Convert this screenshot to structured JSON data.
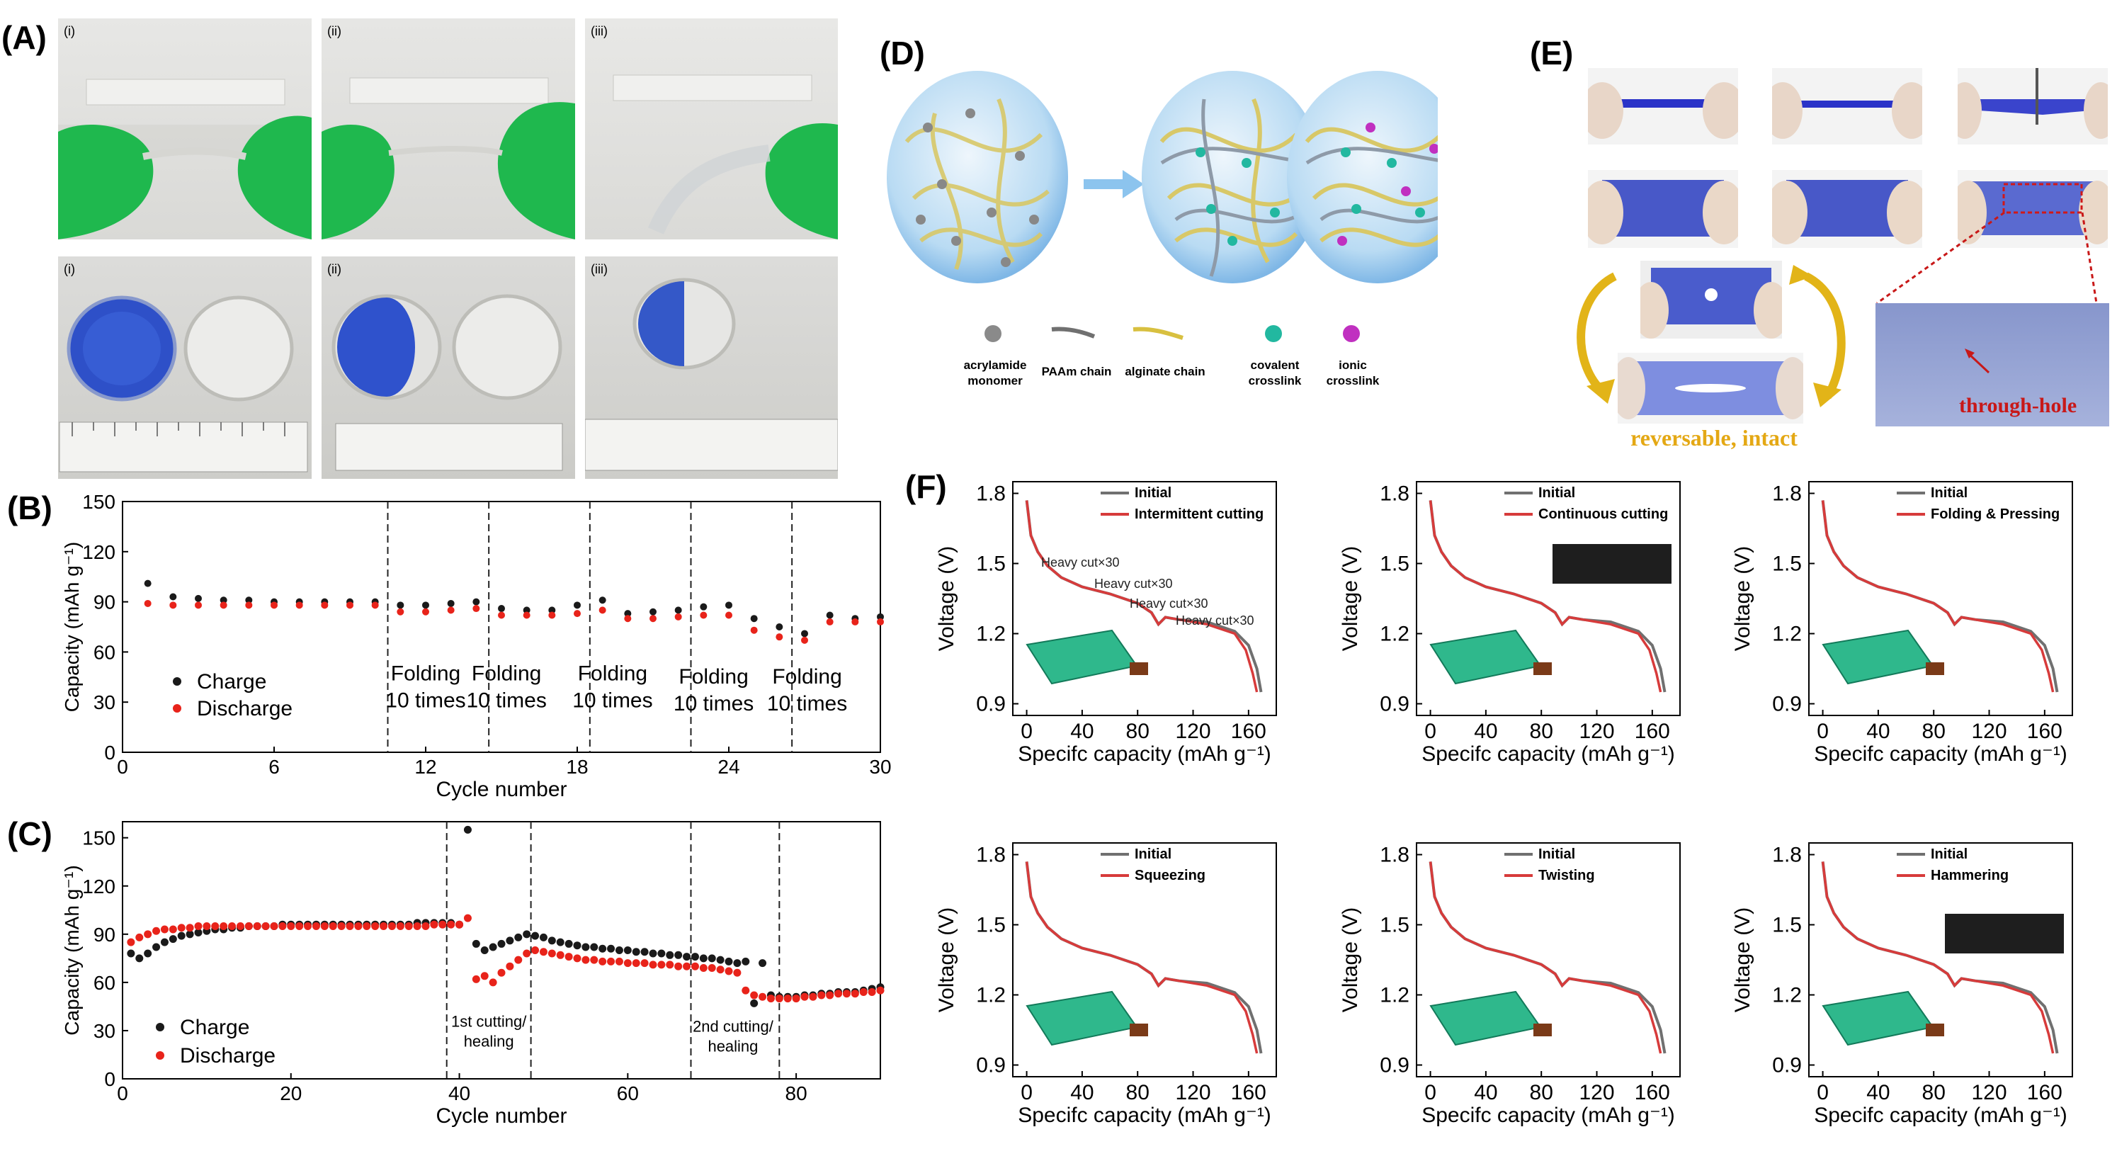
{
  "panels": {
    "A": {
      "label": "(A)",
      "roman": [
        "(i)",
        "(ii)",
        "(iii)"
      ]
    },
    "B": {
      "label": "(B)"
    },
    "C": {
      "label": "(C)"
    },
    "D": {
      "label": "(D)"
    },
    "E": {
      "label": "(E)"
    },
    "F": {
      "label": "(F)"
    }
  },
  "panelD": {
    "legend": [
      {
        "name": "acrylamide monomer",
        "line1": "acrylamide",
        "line2": "monomer"
      },
      {
        "name": "PAAm chain",
        "line1": "PAAm chain",
        "line2": ""
      },
      {
        "name": "alginate chain",
        "line1": "alginate chain",
        "line2": ""
      },
      {
        "name": "covalent crosslink",
        "line1": "covalent",
        "line2": "crosslink"
      },
      {
        "name": "ionic crosslink",
        "line1": "ionic",
        "line2": "crosslink"
      }
    ]
  },
  "panelE": {
    "caption": "reversable, intact",
    "hole_label": "through-hole"
  },
  "chart_data": [
    {
      "id": "B",
      "type": "scatter",
      "xlabel": "Cycle number",
      "ylabel": "Capacity (mAh g⁻¹)",
      "xlim": [
        0,
        30
      ],
      "ylim": [
        0,
        150
      ],
      "xticks": [
        0,
        6,
        12,
        18,
        24,
        30
      ],
      "yticks": [
        0,
        30,
        60,
        90,
        120,
        150
      ],
      "series": [
        {
          "name": "Charge",
          "color": "#1a1a1a",
          "x": [
            1,
            2,
            3,
            4,
            5,
            6,
            7,
            8,
            9,
            10,
            11,
            12,
            13,
            14,
            15,
            16,
            17,
            18,
            19,
            20,
            21,
            22,
            23,
            24,
            25,
            26,
            27,
            28,
            29,
            30
          ],
          "y": [
            101,
            93,
            92,
            91,
            91,
            90,
            90,
            90,
            90,
            90,
            88,
            88,
            89,
            90,
            86,
            85,
            85,
            88,
            91,
            83,
            84,
            85,
            87,
            88,
            80,
            75,
            71,
            82,
            80,
            81
          ]
        },
        {
          "name": "Discharge",
          "color": "#e8231a",
          "x": [
            1,
            2,
            3,
            4,
            5,
            6,
            7,
            8,
            9,
            10,
            11,
            12,
            13,
            14,
            15,
            16,
            17,
            18,
            19,
            20,
            21,
            22,
            23,
            24,
            25,
            26,
            27,
            28,
            29,
            30
          ],
          "y": [
            89,
            88,
            88,
            88,
            88,
            88,
            88,
            88,
            88,
            88,
            84,
            84,
            85,
            86,
            82,
            82,
            82,
            83,
            85,
            80,
            80,
            81,
            82,
            82,
            73,
            69,
            67,
            78,
            78,
            78
          ]
        }
      ],
      "vlines": [
        10.5,
        14.5,
        18.5,
        22.5,
        26.5
      ],
      "annotations": [
        {
          "line1": "Folding",
          "line2": "10 times",
          "x": 12.0,
          "y": 27
        },
        {
          "line1": "Folding",
          "line2": "10 times",
          "x": 15.2,
          "y": 27
        },
        {
          "line1": "Folding",
          "line2": "10 times",
          "x": 19.4,
          "y": 27
        },
        {
          "line1": "Folding",
          "line2": "10 times",
          "x": 23.4,
          "y": 25
        },
        {
          "line1": "Folding",
          "line2": "10 times",
          "x": 27.1,
          "y": 25
        }
      ]
    },
    {
      "id": "C",
      "type": "scatter",
      "xlabel": "Cycle number",
      "ylabel": "Capacity (mAh g⁻¹)",
      "xlim": [
        0,
        90
      ],
      "ylim": [
        0,
        160
      ],
      "xticks": [
        0,
        20,
        40,
        60,
        80
      ],
      "yticks": [
        0,
        30,
        60,
        90,
        120,
        150
      ],
      "series": [
        {
          "name": "Charge",
          "color": "#1a1a1a",
          "x": [
            1,
            2,
            3,
            4,
            5,
            6,
            7,
            8,
            9,
            10,
            11,
            12,
            13,
            14,
            15,
            16,
            17,
            18,
            19,
            20,
            21,
            22,
            23,
            24,
            25,
            26,
            27,
            28,
            29,
            30,
            31,
            32,
            33,
            34,
            35,
            36,
            37,
            38,
            39,
            40,
            41,
            42,
            43,
            44,
            45,
            46,
            47,
            48,
            49,
            50,
            51,
            52,
            53,
            54,
            55,
            56,
            57,
            58,
            59,
            60,
            61,
            62,
            63,
            64,
            65,
            66,
            67,
            68,
            69,
            70,
            71,
            72,
            73,
            74,
            75,
            76,
            77,
            78,
            79,
            80,
            81,
            82,
            83,
            84,
            85,
            86,
            87,
            88,
            89,
            90
          ],
          "y": [
            78,
            75,
            78,
            82,
            85,
            87,
            89,
            90,
            91,
            92,
            93,
            93,
            94,
            94,
            95,
            95,
            95,
            95,
            96,
            96,
            96,
            96,
            96,
            96,
            96,
            96,
            96,
            96,
            96,
            96,
            96,
            96,
            96,
            96,
            97,
            97,
            97,
            97,
            97,
            96,
            155,
            84,
            80,
            82,
            84,
            86,
            88,
            90,
            89,
            88,
            86,
            85,
            84,
            83,
            82,
            82,
            81,
            81,
            80,
            80,
            79,
            79,
            78,
            78,
            77,
            77,
            76,
            76,
            75,
            75,
            74,
            73,
            72,
            73,
            47,
            72,
            52,
            51,
            51,
            51,
            52,
            52,
            53,
            53,
            54,
            54,
            54,
            55,
            56,
            57
          ]
        },
        {
          "name": "Discharge",
          "color": "#e8231a",
          "x": [
            1,
            2,
            3,
            4,
            5,
            6,
            7,
            8,
            9,
            10,
            11,
            12,
            13,
            14,
            15,
            16,
            17,
            18,
            19,
            20,
            21,
            22,
            23,
            24,
            25,
            26,
            27,
            28,
            29,
            30,
            31,
            32,
            33,
            34,
            35,
            36,
            37,
            38,
            39,
            40,
            41,
            42,
            43,
            44,
            45,
            46,
            47,
            48,
            49,
            50,
            51,
            52,
            53,
            54,
            55,
            56,
            57,
            58,
            59,
            60,
            61,
            62,
            63,
            64,
            65,
            66,
            67,
            68,
            69,
            70,
            71,
            72,
            73,
            74,
            75,
            76,
            77,
            78,
            79,
            80,
            81,
            82,
            83,
            84,
            85,
            86,
            87,
            88,
            89,
            90
          ],
          "y": [
            85,
            88,
            90,
            92,
            93,
            93,
            94,
            94,
            95,
            95,
            95,
            95,
            95,
            95,
            95,
            95,
            95,
            95,
            95,
            95,
            95,
            95,
            95,
            95,
            95,
            95,
            95,
            95,
            95,
            95,
            95,
            95,
            95,
            95,
            95,
            95,
            96,
            96,
            96,
            96,
            100,
            62,
            64,
            60,
            66,
            70,
            74,
            78,
            80,
            79,
            78,
            77,
            76,
            75,
            74,
            74,
            73,
            73,
            73,
            72,
            72,
            72,
            71,
            71,
            71,
            70,
            70,
            70,
            69,
            69,
            68,
            67,
            66,
            55,
            52,
            51,
            50,
            50,
            50,
            50,
            51,
            51,
            52,
            52,
            53,
            53,
            53,
            54,
            54,
            55
          ]
        }
      ],
      "vlines": [
        38.5,
        48.5,
        67.5,
        78
      ],
      "annotations": [
        {
          "line1": "1st cutting/",
          "line2": "healing",
          "x": 43.5,
          "y": 20
        },
        {
          "line1": "2nd cutting/",
          "line2": "healing",
          "x": 72.5,
          "y": 17
        }
      ]
    },
    {
      "id": "F1",
      "type": "line",
      "xlabel": "Specifc capacity (mAh g⁻¹)",
      "ylabel": "Voltage (V)",
      "xlim": [
        -10,
        180
      ],
      "ylim": [
        0.85,
        1.85
      ],
      "xticks": [
        0,
        40,
        80,
        120,
        160
      ],
      "yticks": [
        0.9,
        1.2,
        1.5,
        1.8
      ],
      "legend": [
        "Initial",
        "Intermittent cutting"
      ],
      "notes": [
        "Heavy cut×30",
        "Heavy cut×30",
        "Heavy cut×30",
        "Heavy cut×30"
      ]
    },
    {
      "id": "F2",
      "type": "line",
      "xlabel": "Specifc capacity (mAh g⁻¹)",
      "ylabel": "Voltage (V)",
      "xlim": [
        -10,
        180
      ],
      "ylim": [
        0.85,
        1.85
      ],
      "xticks": [
        0,
        40,
        80,
        120,
        160
      ],
      "yticks": [
        0.9,
        1.2,
        1.5,
        1.8
      ],
      "legend": [
        "Initial",
        "Continuous cutting"
      ],
      "notes": []
    },
    {
      "id": "F3",
      "type": "line",
      "xlabel": "Specifc capacity (mAh g⁻¹)",
      "ylabel": "Voltage (V)",
      "xlim": [
        -10,
        180
      ],
      "ylim": [
        0.85,
        1.85
      ],
      "xticks": [
        0,
        40,
        80,
        120,
        160
      ],
      "yticks": [
        0.9,
        1.2,
        1.5,
        1.8
      ],
      "legend": [
        "Initial",
        "Folding & Pressing"
      ],
      "notes": []
    },
    {
      "id": "F4",
      "type": "line",
      "xlabel": "Specifc capacity (mAh g⁻¹)",
      "ylabel": "Voltage (V)",
      "xlim": [
        -10,
        180
      ],
      "ylim": [
        0.85,
        1.85
      ],
      "xticks": [
        0,
        40,
        80,
        120,
        160
      ],
      "yticks": [
        0.9,
        1.2,
        1.5,
        1.8
      ],
      "legend": [
        "Initial",
        "Squeezing"
      ],
      "notes": []
    },
    {
      "id": "F5",
      "type": "line",
      "xlabel": "Specifc capacity (mAh g⁻¹)",
      "ylabel": "Voltage (V)",
      "xlim": [
        -10,
        180
      ],
      "ylim": [
        0.85,
        1.85
      ],
      "xticks": [
        0,
        40,
        80,
        120,
        160
      ],
      "yticks": [
        0.9,
        1.2,
        1.5,
        1.8
      ],
      "legend": [
        "Initial",
        "Twisting"
      ],
      "notes": []
    },
    {
      "id": "F6",
      "type": "line",
      "xlabel": "Specifc capacity (mAh g⁻¹)",
      "ylabel": "Voltage (V)",
      "xlim": [
        -10,
        180
      ],
      "ylim": [
        0.85,
        1.85
      ],
      "xticks": [
        0,
        40,
        80,
        120,
        160
      ],
      "yticks": [
        0.9,
        1.2,
        1.5,
        1.8
      ],
      "legend": [
        "Initial",
        "Hammering"
      ],
      "notes": []
    }
  ],
  "curves": {
    "initial": [
      [
        0,
        1.77
      ],
      [
        3,
        1.62
      ],
      [
        8,
        1.55
      ],
      [
        15,
        1.49
      ],
      [
        25,
        1.44
      ],
      [
        40,
        1.4
      ],
      [
        60,
        1.37
      ],
      [
        80,
        1.33
      ],
      [
        90,
        1.29
      ],
      [
        95,
        1.24
      ],
      [
        100,
        1.27
      ],
      [
        110,
        1.26
      ],
      [
        130,
        1.25
      ],
      [
        150,
        1.21
      ],
      [
        160,
        1.15
      ],
      [
        166,
        1.05
      ],
      [
        169,
        0.95
      ]
    ],
    "abused": [
      [
        0,
        1.77
      ],
      [
        3,
        1.62
      ],
      [
        8,
        1.55
      ],
      [
        15,
        1.49
      ],
      [
        25,
        1.44
      ],
      [
        40,
        1.4
      ],
      [
        60,
        1.37
      ],
      [
        80,
        1.33
      ],
      [
        90,
        1.29
      ],
      [
        95,
        1.24
      ],
      [
        100,
        1.27
      ],
      [
        110,
        1.26
      ],
      [
        130,
        1.24
      ],
      [
        150,
        1.2
      ],
      [
        158,
        1.13
      ],
      [
        163,
        1.03
      ],
      [
        166,
        0.95
      ]
    ]
  },
  "colors": {
    "charge": "#1a1a1a",
    "discharge": "#e8231a",
    "initial": "#707070",
    "abused": "#d73b3b",
    "arrow": "#8cc4ee"
  }
}
